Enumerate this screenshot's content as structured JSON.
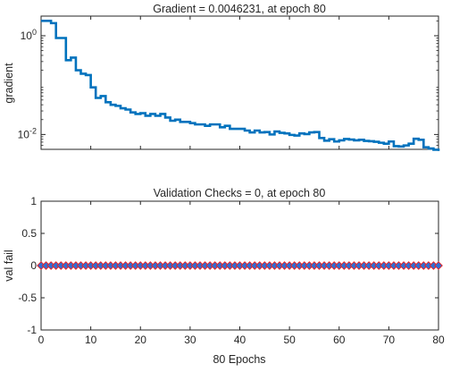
{
  "chart_data": [
    {
      "type": "line",
      "title": "Gradient = 0.0046231, at epoch 80",
      "ylabel": "gradient",
      "xlabel": "",
      "xlim": [
        0,
        80
      ],
      "ylim": [
        0.005,
        2.5
      ],
      "yscale": "log",
      "grid": false,
      "ytick_values": [
        0.01,
        1
      ],
      "ytick_labels": [
        {
          "base": "10",
          "exp": "-2"
        },
        {
          "base": "10",
          "exp": "0"
        }
      ],
      "series": [
        {
          "color": "#0072BD",
          "x": [
            0,
            1,
            2,
            3,
            4,
            5,
            6,
            7,
            8,
            9,
            10,
            11,
            12,
            13,
            14,
            15,
            16,
            17,
            18,
            19,
            20,
            21,
            22,
            23,
            24,
            25,
            26,
            27,
            28,
            29,
            30,
            31,
            32,
            33,
            34,
            35,
            36,
            37,
            38,
            39,
            40,
            41,
            42,
            43,
            44,
            45,
            46,
            47,
            48,
            49,
            50,
            51,
            52,
            53,
            54,
            55,
            56,
            57,
            58,
            59,
            60,
            61,
            62,
            63,
            64,
            65,
            66,
            67,
            68,
            69,
            70,
            71,
            72,
            73,
            74,
            75,
            76,
            77,
            78,
            79,
            80
          ],
          "y": [
            2.0,
            2.0,
            1.8,
            0.9,
            0.9,
            0.32,
            0.36,
            0.2,
            0.17,
            0.16,
            0.09,
            0.055,
            0.06,
            0.045,
            0.04,
            0.038,
            0.034,
            0.032,
            0.028,
            0.026,
            0.027,
            0.024,
            0.026,
            0.024,
            0.026,
            0.022,
            0.019,
            0.02,
            0.018,
            0.018,
            0.017,
            0.016,
            0.016,
            0.015,
            0.016,
            0.016,
            0.014,
            0.015,
            0.013,
            0.013,
            0.013,
            0.012,
            0.011,
            0.012,
            0.011,
            0.0112,
            0.01,
            0.0115,
            0.0108,
            0.0105,
            0.0098,
            0.0095,
            0.0105,
            0.0102,
            0.011,
            0.0112,
            0.0085,
            0.0075,
            0.008,
            0.0072,
            0.0076,
            0.0081,
            0.0079,
            0.0076,
            0.0078,
            0.0074,
            0.0073,
            0.0071,
            0.0068,
            0.0065,
            0.0072,
            0.0058,
            0.0057,
            0.006,
            0.0065,
            0.0082,
            0.0078,
            0.0055,
            0.0052,
            0.0049,
            0.0046231
          ]
        }
      ]
    },
    {
      "type": "line",
      "title": "Validation Checks = 0, at epoch 80",
      "ylabel": "val fail",
      "xlabel": "80 Epochs",
      "xlim": [
        0,
        80
      ],
      "ylim": [
        -1,
        1
      ],
      "grid": false,
      "xticks": [
        0,
        10,
        20,
        30,
        40,
        50,
        60,
        70,
        80
      ],
      "yticks": [
        -1,
        -0.5,
        0,
        0.5,
        1
      ],
      "series": [
        {
          "color": "#E4252A",
          "marker_color": "#2E6FD6",
          "marker": "diamond",
          "x": [
            0,
            1,
            2,
            3,
            4,
            5,
            6,
            7,
            8,
            9,
            10,
            11,
            12,
            13,
            14,
            15,
            16,
            17,
            18,
            19,
            20,
            21,
            22,
            23,
            24,
            25,
            26,
            27,
            28,
            29,
            30,
            31,
            32,
            33,
            34,
            35,
            36,
            37,
            38,
            39,
            40,
            41,
            42,
            43,
            44,
            45,
            46,
            47,
            48,
            49,
            50,
            51,
            52,
            53,
            54,
            55,
            56,
            57,
            58,
            59,
            60,
            61,
            62,
            63,
            64,
            65,
            66,
            67,
            68,
            69,
            70,
            71,
            72,
            73,
            74,
            75,
            76,
            77,
            78,
            79,
            80
          ],
          "y": [
            0,
            0,
            0,
            0,
            0,
            0,
            0,
            0,
            0,
            0,
            0,
            0,
            0,
            0,
            0,
            0,
            0,
            0,
            0,
            0,
            0,
            0,
            0,
            0,
            0,
            0,
            0,
            0,
            0,
            0,
            0,
            0,
            0,
            0,
            0,
            0,
            0,
            0,
            0,
            0,
            0,
            0,
            0,
            0,
            0,
            0,
            0,
            0,
            0,
            0,
            0,
            0,
            0,
            0,
            0,
            0,
            0,
            0,
            0,
            0,
            0,
            0,
            0,
            0,
            0,
            0,
            0,
            0,
            0,
            0,
            0,
            0,
            0,
            0,
            0,
            0,
            0,
            0,
            0,
            0,
            0
          ]
        }
      ]
    }
  ]
}
